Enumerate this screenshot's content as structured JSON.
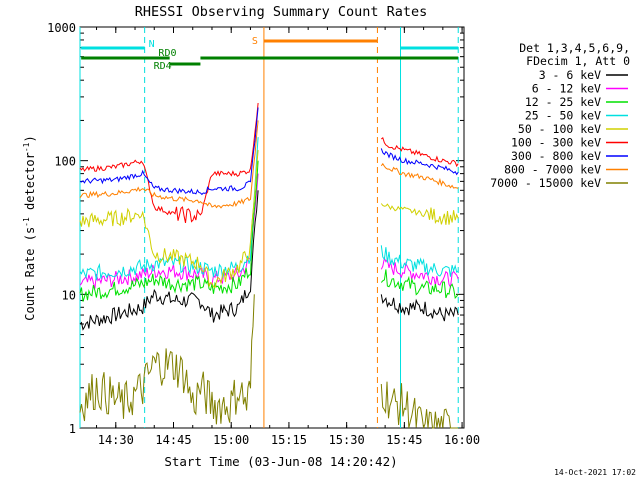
{
  "chart_data": {
    "type": "line",
    "title": "RHESSI Observing Summary Count Rates",
    "xlabel": "Start Time (03-Jun-08 14:20:42)",
    "ylabel": "Count Rate (s⁻¹ detector⁻¹)",
    "ylabel_main": "Count Rate (s",
    "ylabel_sup1": "-1",
    "ylabel_mid": " detector",
    "ylabel_sup2": "-1",
    "ylabel_end": ")",
    "y_scale": "log",
    "ylim": [
      1,
      1000
    ],
    "xlim": [
      "14:20:42",
      "16:00:30"
    ],
    "x_ticks": [
      "14:30",
      "14:45",
      "15:00",
      "15:15",
      "15:30",
      "15:45",
      "16:00"
    ],
    "y_ticks": [
      "1",
      "10",
      "100",
      "1000"
    ],
    "legend_header": [
      "Det 1,3,4,5,6,9,",
      "FDecim 1, Att 0"
    ],
    "legend_position": "right",
    "footer_date": "14-Oct-2021 17:02",
    "series": [
      {
        "name": "3 - 6 keV",
        "color": "#000000",
        "segments": [
          {
            "x": [
              "14:20:42",
              "14:30",
              "14:37",
              "14:40",
              "14:45",
              "14:52",
              "14:55",
              "15:02",
              "15:05",
              "15:07"
            ],
            "y": [
              6,
              7,
              8,
              10,
              9,
              9,
              7,
              8,
              12,
              60
            ]
          },
          {
            "x": [
              "15:39",
              "15:41",
              "15:45",
              "15:50",
              "15:55",
              "15:59"
            ],
            "y": [
              10,
              9,
              8,
              8,
              7,
              7
            ]
          }
        ]
      },
      {
        "name": "6 - 12 keV",
        "color": "#ff00ff",
        "segments": [
          {
            "x": [
              "14:20:42",
              "14:30",
              "14:37",
              "14:40",
              "14:45",
              "14:52",
              "14:55",
              "15:02",
              "15:05",
              "15:07"
            ],
            "y": [
              12,
              13,
              14,
              15,
              15,
              14,
              13,
              14,
              18,
              80
            ]
          },
          {
            "x": [
              "15:39",
              "15:41",
              "15:45",
              "15:50",
              "15:55",
              "15:59"
            ],
            "y": [
              17,
              16,
              15,
              14,
              13,
              13
            ]
          }
        ]
      },
      {
        "name": "12 - 25 keV",
        "color": "#00e000",
        "segments": [
          {
            "x": [
              "14:20:42",
              "14:30",
              "14:37",
              "14:40",
              "14:45",
              "14:52",
              "14:55",
              "15:02",
              "15:05",
              "15:07"
            ],
            "y": [
              10,
              11,
              12,
              13,
              12,
              12,
              11,
              12,
              16,
              100
            ]
          },
          {
            "x": [
              "15:39",
              "15:41",
              "15:45",
              "15:50",
              "15:55",
              "15:59"
            ],
            "y": [
              14,
              13,
              12,
              11,
              11,
              10
            ]
          }
        ]
      },
      {
        "name": "25 - 50 keV",
        "color": "#00e0e0",
        "segments": [
          {
            "x": [
              "14:20:42",
              "14:30",
              "14:37",
              "14:40",
              "14:45",
              "14:52",
              "14:55",
              "15:02",
              "15:05",
              "15:07"
            ],
            "y": [
              14,
              15,
              16,
              17,
              17,
              16,
              15,
              16,
              20,
              150
            ]
          },
          {
            "x": [
              "15:39",
              "15:41",
              "15:45",
              "15:50",
              "15:55",
              "15:59"
            ],
            "y": [
              21,
              19,
              17,
              16,
              15,
              15
            ]
          }
        ]
      },
      {
        "name": "50 - 100 keV",
        "color": "#d0d000",
        "segments": [
          {
            "x": [
              "14:20:42",
              "14:30",
              "14:37",
              "14:40",
              "14:45",
              "14:52",
              "14:55",
              "15:02",
              "15:05",
              "15:07"
            ],
            "y": [
              35,
              37,
              40,
              20,
              19,
              17,
              12,
              16,
              22,
              120
            ]
          },
          {
            "x": [
              "15:39",
              "15:41",
              "15:45",
              "15:50",
              "15:55",
              "15:59"
            ],
            "y": [
              48,
              45,
              43,
              40,
              38,
              37
            ]
          }
        ]
      },
      {
        "name": "100 - 300 keV",
        "color": "#ff0000",
        "segments": [
          {
            "x": [
              "14:20:42",
              "14:30",
              "14:37",
              "14:40",
              "14:45",
              "14:52",
              "14:55",
              "15:02",
              "15:05",
              "15:07"
            ],
            "y": [
              85,
              90,
              100,
              45,
              40,
              38,
              80,
              80,
              85,
              270
            ]
          },
          {
            "x": [
              "15:39",
              "15:41",
              "15:45",
              "15:50",
              "15:55",
              "15:59"
            ],
            "y": [
              145,
              130,
              120,
              110,
              100,
              95
            ]
          }
        ]
      },
      {
        "name": "300 - 800 keV",
        "color": "#0000ff",
        "segments": [
          {
            "x": [
              "14:20:42",
              "14:30",
              "14:37",
              "14:40",
              "14:45",
              "14:52",
              "14:55",
              "15:02",
              "15:05",
              "15:07"
            ],
            "y": [
              70,
              72,
              80,
              62,
              60,
              58,
              62,
              62,
              68,
              250
            ]
          },
          {
            "x": [
              "15:39",
              "15:41",
              "15:45",
              "15:50",
              "15:55",
              "15:59"
            ],
            "y": [
              120,
              110,
              100,
              95,
              88,
              82
            ]
          }
        ]
      },
      {
        "name": "800 - 7000 keV",
        "color": "#ff8000",
        "segments": [
          {
            "x": [
              "14:20:42",
              "14:30",
              "14:37",
              "14:40",
              "14:45",
              "14:52",
              "14:55",
              "15:02",
              "15:05",
              "15:07"
            ],
            "y": [
              55,
              57,
              62,
              55,
              52,
              50,
              45,
              48,
              52,
              200
            ]
          },
          {
            "x": [
              "15:39",
              "15:41",
              "15:45",
              "15:50",
              "15:55",
              "15:59"
            ],
            "y": [
              95,
              88,
              80,
              75,
              68,
              62
            ]
          }
        ]
      },
      {
        "name": "7000 - 15000 keV",
        "color": "#808000",
        "segments": [
          {
            "x": [
              "14:20:42",
              "14:25",
              "14:32",
              "14:37",
              "14:40",
              "14:45",
              "14:48",
              "14:50",
              "14:52",
              "14:55",
              "15:00",
              "15:02",
              "15:04",
              "15:05",
              "15:06"
            ],
            "y": [
              1.5,
              2,
              1.5,
              2,
              3,
              3,
              2.5,
              1.5,
              2,
              1.5,
              1.5,
              2,
              1.5,
              2,
              10
            ]
          },
          {
            "x": [
              "15:39",
              "15:42",
              "15:45",
              "15:50",
              "15:55",
              "15:59"
            ],
            "y": [
              2,
              1.5,
              1.5,
              1,
              1,
              1
            ]
          }
        ]
      }
    ],
    "vertical_lines": [
      {
        "x": "14:20:42",
        "color": "#00e0e0",
        "style": "solid"
      },
      {
        "x": "14:37:30",
        "color": "#00e0e0",
        "style": "dashed"
      },
      {
        "x": "15:08:30",
        "color": "#ff8000",
        "style": "solid"
      },
      {
        "x": "15:38:00",
        "color": "#ff8000",
        "style": "dashed"
      },
      {
        "x": "15:44:00",
        "color": "#00e0e0",
        "style": "solid"
      },
      {
        "x": "15:59:00",
        "color": "#00e0e0",
        "style": "dashed"
      }
    ],
    "flag_bars": [
      {
        "label": "N",
        "color": "#00e0e0",
        "spans": [
          [
            "14:21:00",
            "14:37:30"
          ],
          [
            "15:44:00",
            "15:59:00"
          ]
        ]
      },
      {
        "label": "S",
        "color": "#ff8000",
        "spans": [
          [
            "15:08:30",
            "15:38:00"
          ]
        ]
      },
      {
        "label": "RD0",
        "color": "#008000",
        "spans": [
          [
            "14:21:00",
            "14:44:00"
          ],
          [
            "14:52:00",
            "15:59:00"
          ]
        ]
      },
      {
        "label": "RD4",
        "color": "#008000",
        "spans": [
          [
            "14:44:00",
            "14:52:00"
          ]
        ]
      }
    ]
  }
}
